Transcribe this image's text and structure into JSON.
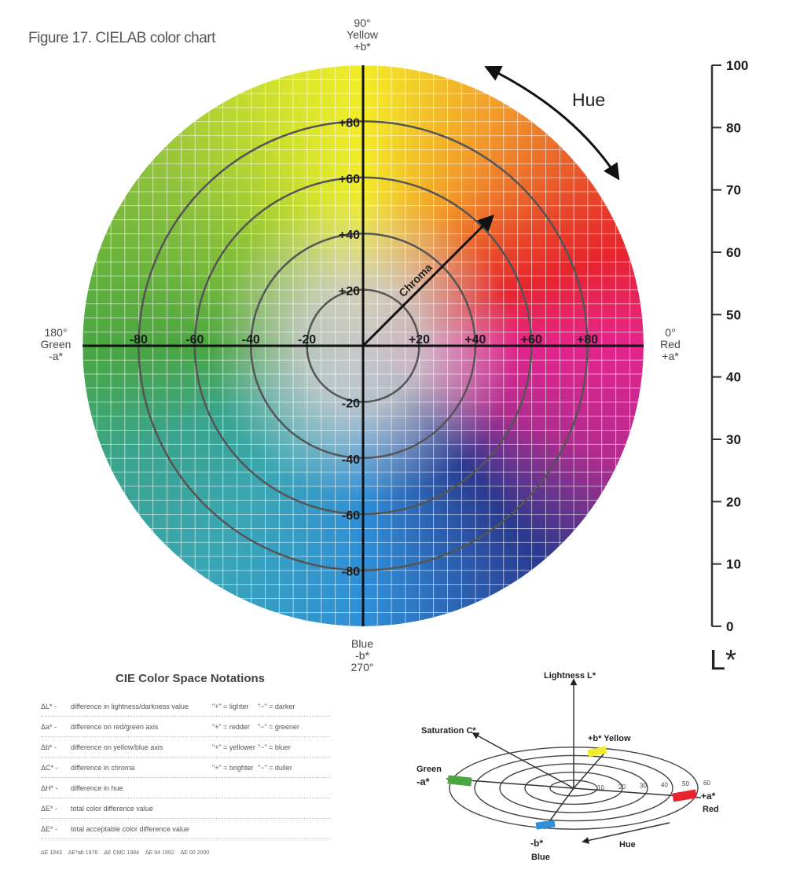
{
  "figure": {
    "title": "Figure 17. CIELAB color chart"
  },
  "chart_data": {
    "type": "polar",
    "axes": {
      "top": {
        "angle": "90°",
        "name": "Yellow",
        "sign": "+b*"
      },
      "left": {
        "angle": "180°",
        "name": "Green",
        "sign": "-a*"
      },
      "right": {
        "angle": "0°",
        "name": "Red",
        "sign": "+a*"
      },
      "bottom": {
        "angle": "270°",
        "name": "Blue",
        "sign": "-b*"
      }
    },
    "a_ticks": [
      "-80",
      "-60",
      "-40",
      "-20",
      "+20",
      "+40",
      "+60",
      "+80"
    ],
    "a_values": [
      -80,
      -60,
      -40,
      -20,
      20,
      40,
      60,
      80
    ],
    "b_ticks": [
      "+80",
      "+60",
      "+40",
      "+20",
      "-20",
      "-40",
      "-60",
      "-80"
    ],
    "b_values": [
      80,
      60,
      40,
      20,
      -20,
      -40,
      -60,
      -80
    ],
    "rings": [
      20,
      40,
      60,
      80
    ],
    "range": [
      -100,
      100
    ],
    "chroma_label": "Chroma",
    "hue_label": "Hue",
    "lightness": {
      "label": "L*",
      "ticks": [
        "100",
        "80",
        "70",
        "60",
        "50",
        "40",
        "30",
        "20",
        "10",
        "0"
      ],
      "values": [
        100,
        80,
        70,
        60,
        50,
        40,
        30,
        20,
        10,
        0
      ]
    },
    "colors": {
      "yellow": "#f3ec27",
      "red": "#e7242d",
      "green": "#4aa640",
      "blue": "#2f8fd8",
      "magenta": "#e5248d",
      "navy": "#2a3a8f"
    }
  },
  "notations": {
    "title": "CIE Color Space Notations",
    "rows": [
      {
        "symbol": "ΔL* -",
        "desc": "difference in lightness/darkness value",
        "pos": "\"+\" = lighter",
        "neg": "\"−\" = darker"
      },
      {
        "symbol": "Δa* -",
        "desc": "difference on red/green axis",
        "pos": "\"+\" = redder",
        "neg": "\"−\" = greener"
      },
      {
        "symbol": "Δb* -",
        "desc": "difference on yellow/blue axis",
        "pos": "\"+\" = yellower",
        "neg": "\"−\" = bluer"
      },
      {
        "symbol": "ΔC* -",
        "desc": "difference in chroma",
        "pos": "\"+\" = brighter",
        "neg": "\"−\" = duller"
      },
      {
        "symbol": "ΔH* -",
        "desc": "difference in hue",
        "pos": "",
        "neg": ""
      },
      {
        "symbol": "ΔE* -",
        "desc": "total color difference value",
        "pos": "",
        "neg": ""
      },
      {
        "symbol": "ΔE* -",
        "desc": "total acceptable color difference value",
        "pos": "",
        "neg": ""
      }
    ],
    "footer": [
      "ΔE 1943",
      "ΔE*ab 1976",
      "ΔE CMC 1984",
      "ΔE 94 1992",
      "ΔE 00 2000"
    ]
  },
  "diagram3d": {
    "lightness": "Lightness L*",
    "saturation": "Saturation C*",
    "yellow": "+b* Yellow",
    "green_word": "Green",
    "green_sign": "-a*",
    "red_sign": "+a*",
    "red_word": "Red",
    "blue_sign": "-b*",
    "blue_word": "Blue",
    "hue": "Hue",
    "ring_ticks": [
      "10",
      "20",
      "30",
      "40",
      "50",
      "60"
    ]
  }
}
